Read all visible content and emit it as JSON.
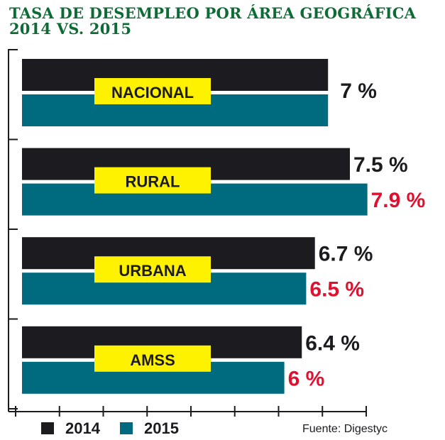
{
  "chart_data": {
    "type": "bar",
    "orientation": "horizontal",
    "title": "TASA DE DESEMPLEO POR  ÁREA GEOGRÁFICA",
    "subtitle": "2014 VS. 2015",
    "categories": [
      "NACIONAL",
      "RURAL",
      "URBANA",
      "AMSS"
    ],
    "series": [
      {
        "name": "2014",
        "color": "#1c1b1f",
        "values": [
          7,
          7.5,
          6.7,
          6.4
        ],
        "labels": [
          "7 %",
          "7.5 %",
          "6.7 %",
          "6.4 %"
        ],
        "label_color": "#1c1b1f"
      },
      {
        "name": "2015",
        "color": "#006a7e",
        "values": [
          7,
          7.9,
          6.5,
          6
        ],
        "labels": [
          "",
          "7.9 %",
          "6.5 %",
          "6 %"
        ],
        "label_color": "#e0102f"
      }
    ],
    "category_label_bg": "#fff200",
    "title_color": "#0f6b35",
    "source": "Fuente: Digestyc",
    "legend_position": "bottom-left",
    "grid": false
  }
}
